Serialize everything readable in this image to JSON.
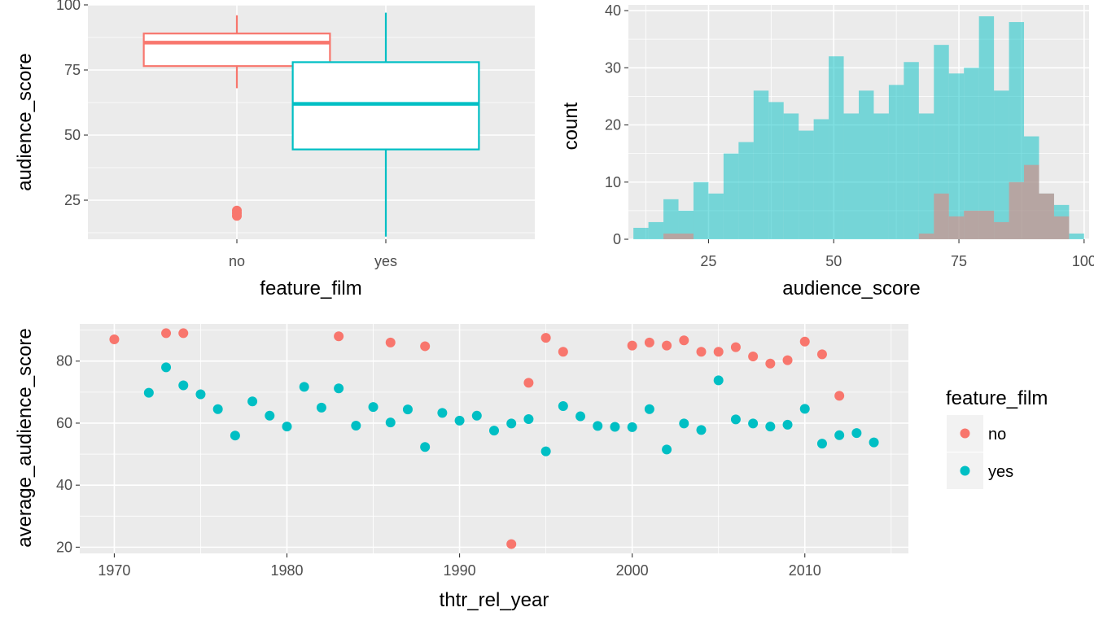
{
  "colors": {
    "no": "#F8766D",
    "yes": "#00BFC4"
  },
  "chart_data": [
    {
      "type": "boxplot",
      "xlabel": "feature_film",
      "ylabel": "audience_score",
      "categories": [
        "no",
        "yes"
      ],
      "ylim": [
        10,
        100
      ],
      "yticks": [
        25,
        50,
        75,
        100
      ],
      "grid": true,
      "boxes": [
        {
          "category": "no",
          "whisker_low": 68,
          "q1": 76.5,
          "median": 85.5,
          "q3": 89,
          "whisker_high": 96,
          "outliers": [
            21,
            20,
            19
          ]
        },
        {
          "category": "yes",
          "whisker_low": 11,
          "q1": 44.5,
          "median": 62,
          "q3": 78,
          "whisker_high": 97,
          "outliers": []
        }
      ]
    },
    {
      "type": "histogram",
      "xlabel": "audience_score",
      "ylabel": "count",
      "xlim": [
        9,
        101
      ],
      "ylim": [
        0,
        41
      ],
      "xticks": [
        25,
        50,
        75,
        100
      ],
      "yticks": [
        0,
        10,
        20,
        30,
        40
      ],
      "binwidth": 3,
      "grid": true,
      "series": [
        {
          "name": "yes",
          "bins_start": [
            10,
            13,
            16,
            19,
            22,
            25,
            28,
            31,
            34,
            37,
            40,
            43,
            46,
            49,
            52,
            55,
            58,
            61,
            64,
            67,
            70,
            73,
            76,
            79,
            82,
            85,
            88,
            91,
            94,
            97
          ],
          "counts": [
            2,
            3,
            7,
            5,
            10,
            8,
            15,
            17,
            26,
            24,
            22,
            19,
            21,
            32,
            22,
            26,
            22,
            27,
            31,
            22,
            34,
            29,
            30,
            39,
            26,
            38,
            18,
            8,
            6,
            1
          ]
        },
        {
          "name": "no",
          "bins_start": [
            16,
            19,
            67,
            70,
            73,
            76,
            79,
            82,
            85,
            88,
            91,
            94
          ],
          "counts": [
            1,
            1,
            1,
            8,
            4,
            5,
            5,
            3,
            10,
            13,
            8,
            4
          ]
        }
      ]
    },
    {
      "type": "scatter",
      "xlabel": "thtr_rel_year",
      "ylabel": "average_audience_score",
      "xlim": [
        1968,
        2016
      ],
      "ylim": [
        18,
        92
      ],
      "xticks": [
        1970,
        1980,
        1990,
        2000,
        2010
      ],
      "yticks": [
        20,
        40,
        60,
        80
      ],
      "grid": true,
      "legend": {
        "title": "feature_film",
        "position": "right",
        "entries": [
          "no",
          "yes"
        ]
      },
      "series": [
        {
          "name": "no",
          "x": [
            1970,
            1973,
            1974,
            1983,
            1986,
            1988,
            1993,
            1994,
            1995,
            1996,
            2000,
            2001,
            2002,
            2003,
            2004,
            2005,
            2006,
            2007,
            2008,
            2009,
            2010,
            2011,
            2012
          ],
          "y": [
            87,
            89,
            89,
            88,
            86,
            84.8,
            21,
            73,
            87.5,
            83,
            85,
            86,
            85,
            86.7,
            83,
            83,
            84.5,
            81.5,
            79.2,
            80.3,
            86.3,
            82.2,
            68.8
          ]
        },
        {
          "name": "yes",
          "x": [
            1972,
            1973,
            1974,
            1975,
            1976,
            1977,
            1978,
            1979,
            1980,
            1981,
            1982,
            1983,
            1984,
            1985,
            1986,
            1987,
            1988,
            1989,
            1990,
            1991,
            1992,
            1993,
            1994,
            1995,
            1996,
            1997,
            1998,
            1999,
            2000,
            2001,
            2002,
            2003,
            2004,
            2005,
            2006,
            2007,
            2008,
            2009,
            2010,
            2011,
            2012,
            2013,
            2014
          ],
          "y": [
            69.8,
            78,
            72.2,
            69.3,
            64.5,
            56,
            67,
            62.4,
            58.9,
            71.7,
            65,
            71.2,
            59.2,
            65.2,
            60.2,
            64.4,
            52.3,
            63.3,
            60.8,
            62.4,
            57.6,
            59.9,
            61.3,
            50.9,
            65.5,
            62.2,
            59.1,
            58.8,
            58.7,
            64.5,
            51.5,
            59.9,
            57.8,
            73.8,
            61.2,
            59.9,
            58.9,
            59.5,
            64.6,
            53.4,
            56.1,
            56.8,
            53.8
          ]
        }
      ]
    }
  ]
}
